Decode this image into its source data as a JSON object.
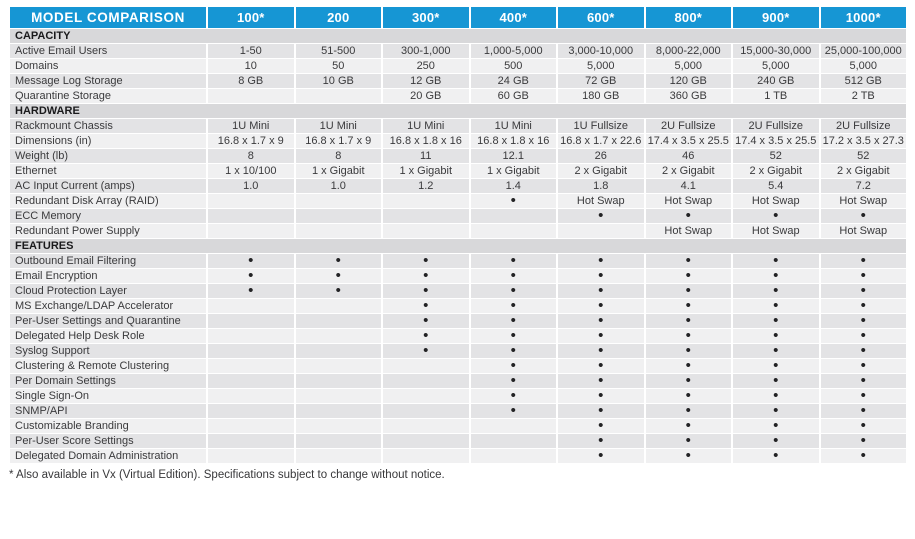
{
  "table": {
    "title": "MODEL COMPARISON",
    "columns": [
      "100*",
      "200",
      "300*",
      "400*",
      "600*",
      "800*",
      "900*",
      "1000*"
    ],
    "sections": [
      {
        "label": "CAPACITY",
        "rows": [
          {
            "label": "Active Email Users",
            "values": [
              "1-50",
              "51-500",
              "300-1,000",
              "1,000-5,000",
              "3,000-10,000",
              "8,000-22,000",
              "15,000-30,000",
              "25,000-100,000"
            ]
          },
          {
            "label": "Domains",
            "values": [
              "10",
              "50",
              "250",
              "500",
              "5,000",
              "5,000",
              "5,000",
              "5,000"
            ]
          },
          {
            "label": "Message Log Storage",
            "values": [
              "8 GB",
              "10 GB",
              "12 GB",
              "24 GB",
              "72 GB",
              "120 GB",
              "240 GB",
              "512 GB"
            ]
          },
          {
            "label": "Quarantine Storage",
            "values": [
              "",
              "",
              "20 GB",
              "60 GB",
              "180 GB",
              "360 GB",
              "1 TB",
              "2 TB"
            ]
          }
        ]
      },
      {
        "label": "HARDWARE",
        "rows": [
          {
            "label": "Rackmount Chassis",
            "values": [
              "1U Mini",
              "1U Mini",
              "1U Mini",
              "1U Mini",
              "1U Fullsize",
              "2U Fullsize",
              "2U Fullsize",
              "2U Fullsize"
            ]
          },
          {
            "label": "Dimensions (in)",
            "values": [
              "16.8 x 1.7 x 9",
              "16.8 x 1.7 x 9",
              "16.8 x 1.8 x 16",
              "16.8 x 1.8 x 16",
              "16.8 x 1.7 x 22.6",
              "17.4 x 3.5 x 25.5",
              "17.4 x 3.5 x 25.5",
              "17.2 x 3.5 x 27.3"
            ]
          },
          {
            "label": "Weight (lb)",
            "values": [
              "8",
              "8",
              "11",
              "12.1",
              "26",
              "46",
              "52",
              "52"
            ]
          },
          {
            "label": "Ethernet",
            "values": [
              "1 x 10/100",
              "1 x Gigabit",
              "1 x Gigabit",
              "1 x Gigabit",
              "2 x Gigabit",
              "2 x Gigabit",
              "2 x Gigabit",
              "2 x Gigabit"
            ]
          },
          {
            "label": "AC Input Current (amps)",
            "values": [
              "1.0",
              "1.0",
              "1.2",
              "1.4",
              "1.8",
              "4.1",
              "5.4",
              "7.2"
            ]
          },
          {
            "label": "Redundant Disk Array (RAID)",
            "values": [
              "",
              "",
              "",
              "•",
              "Hot Swap",
              "Hot Swap",
              "Hot Swap",
              "Hot Swap"
            ]
          },
          {
            "label": "ECC Memory",
            "values": [
              "",
              "",
              "",
              "",
              "•",
              "•",
              "•",
              "•"
            ]
          },
          {
            "label": "Redundant Power Supply",
            "values": [
              "",
              "",
              "",
              "",
              "",
              "Hot Swap",
              "Hot Swap",
              "Hot Swap"
            ]
          }
        ]
      },
      {
        "label": "FEATURES",
        "rows": [
          {
            "label": "Outbound Email Filtering",
            "values": [
              "•",
              "•",
              "•",
              "•",
              "•",
              "•",
              "•",
              "•"
            ]
          },
          {
            "label": "Email Encryption",
            "values": [
              "•",
              "•",
              "•",
              "•",
              "•",
              "•",
              "•",
              "•"
            ]
          },
          {
            "label": "Cloud Protection Layer",
            "values": [
              "•",
              "•",
              "•",
              "•",
              "•",
              "•",
              "•",
              "•"
            ]
          },
          {
            "label": "MS Exchange/LDAP Accelerator",
            "values": [
              "",
              "",
              "•",
              "•",
              "•",
              "•",
              "•",
              "•"
            ]
          },
          {
            "label": "Per-User Settings and Quarantine",
            "values": [
              "",
              "",
              "•",
              "•",
              "•",
              "•",
              "•",
              "•"
            ]
          },
          {
            "label": "Delegated Help Desk Role",
            "values": [
              "",
              "",
              "•",
              "•",
              "•",
              "•",
              "•",
              "•"
            ]
          },
          {
            "label": "Syslog Support",
            "values": [
              "",
              "",
              "•",
              "•",
              "•",
              "•",
              "•",
              "•"
            ]
          },
          {
            "label": "Clustering & Remote Clustering",
            "values": [
              "",
              "",
              "",
              "•",
              "•",
              "•",
              "•",
              "•"
            ]
          },
          {
            "label": "Per Domain Settings",
            "values": [
              "",
              "",
              "",
              "•",
              "•",
              "•",
              "•",
              "•"
            ]
          },
          {
            "label": "Single Sign-On",
            "values": [
              "",
              "",
              "",
              "•",
              "•",
              "•",
              "•",
              "•"
            ]
          },
          {
            "label": "SNMP/API",
            "values": [
              "",
              "",
              "",
              "•",
              "•",
              "•",
              "•",
              "•"
            ]
          },
          {
            "label": "Customizable Branding",
            "values": [
              "",
              "",
              "",
              "",
              "•",
              "•",
              "•",
              "•"
            ]
          },
          {
            "label": "Per-User Score Settings",
            "values": [
              "",
              "",
              "",
              "",
              "•",
              "•",
              "•",
              "•"
            ]
          },
          {
            "label": "Delegated Domain Administration",
            "values": [
              "",
              "",
              "",
              "",
              "•",
              "•",
              "•",
              "•"
            ]
          }
        ]
      }
    ]
  },
  "footnote": "* Also available in Vx (Virtual Edition). Specifications subject to change without notice.",
  "colors": {
    "header_blue": "#1696d4",
    "section_band": "#d8d8da",
    "row_dark": "#e3e3e5",
    "row_light": "#f0f0f1",
    "dot": "#232325"
  }
}
